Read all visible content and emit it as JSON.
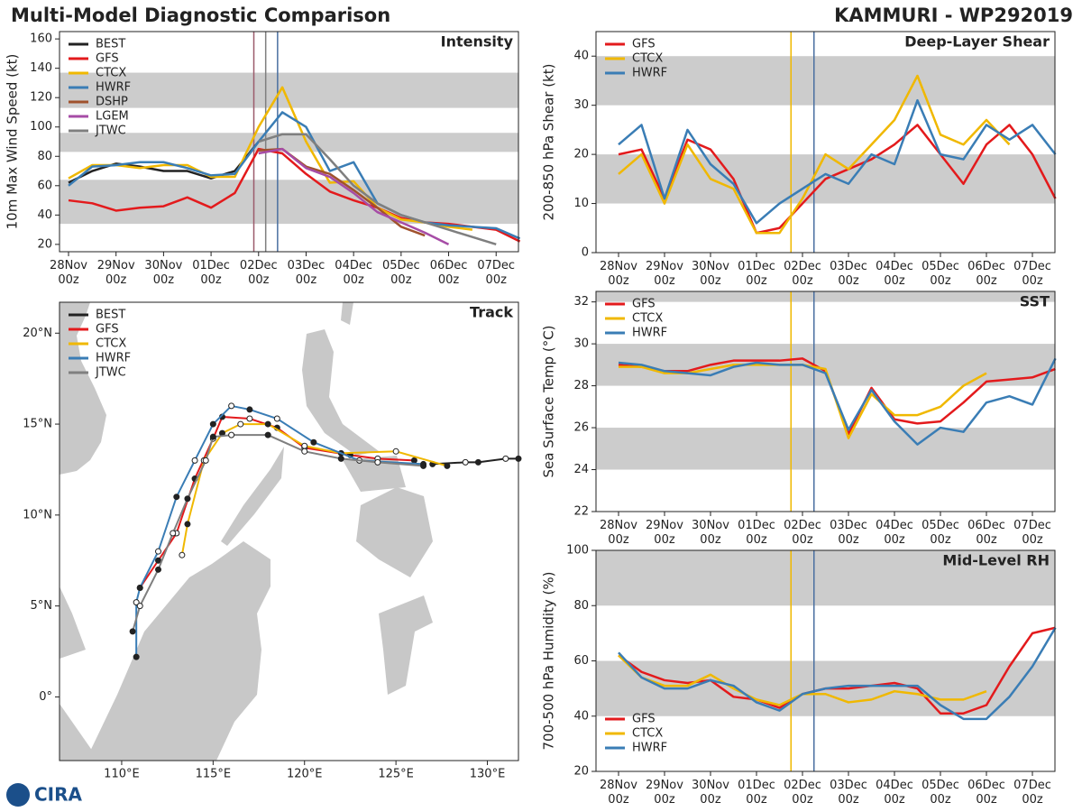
{
  "title": "Multi-Model Diagnostic Comparison",
  "storm": "KAMMURI - WP292019",
  "logo": "CIRA",
  "chart_data": [
    {
      "type": "line",
      "title": "Intensity",
      "ylabel": "10m Max Wind Speed (kt)",
      "legend": "upper left",
      "xlim": [
        -0.19,
        9.47
      ],
      "ylim": [
        15,
        165
      ],
      "xticks": [
        {
          "value": 0,
          "label": "28Nov\n00z"
        },
        {
          "value": 1,
          "label": "29Nov\n00z"
        },
        {
          "value": 2,
          "label": "30Nov\n00z"
        },
        {
          "value": 3,
          "label": "01Dec\n00z"
        },
        {
          "value": 4,
          "label": "02Dec\n00z"
        },
        {
          "value": 5,
          "label": "03Dec\n00z"
        },
        {
          "value": 6,
          "label": "04Dec\n00z"
        },
        {
          "value": 7,
          "label": "05Dec\n00z"
        },
        {
          "value": 8,
          "label": "06Dec\n00z"
        },
        {
          "value": 9,
          "label": "07Dec\n00z"
        }
      ],
      "yticks": [
        20,
        40,
        60,
        80,
        100,
        120,
        140,
        160
      ],
      "bands": [
        [
          34,
          64
        ],
        [
          83,
          96
        ],
        [
          113,
          137
        ]
      ],
      "vlines": [
        {
          "value": 3.9,
          "color": "#9b5b6b"
        },
        {
          "value": 4.15,
          "color": "#7f7f7f"
        },
        {
          "value": 4.4,
          "color": "#4a6fa0"
        }
      ],
      "x": [
        0,
        0.5,
        1,
        1.5,
        2,
        2.5,
        3,
        3.5,
        4,
        4.5,
        5,
        5.5,
        6,
        6.5,
        7,
        7.5,
        8,
        8.5,
        9,
        9.5
      ],
      "series": [
        {
          "name": "BEST",
          "color": "#222222",
          "values": [
            62,
            70,
            75,
            73,
            70,
            70,
            65,
            70,
            90,
            null,
            null,
            null,
            null,
            null,
            null,
            null,
            null,
            null,
            null,
            null
          ]
        },
        {
          "name": "GFS",
          "color": "#e31a1c",
          "values": [
            50,
            48,
            43,
            45,
            46,
            52,
            45,
            55,
            85,
            82,
            68,
            56,
            50,
            45,
            38,
            35,
            34,
            32,
            30,
            22
          ]
        },
        {
          "name": "CTCX",
          "color": "#f0b800",
          "values": [
            65,
            74,
            74,
            72,
            74,
            74,
            66,
            66,
            100,
            127,
            90,
            62,
            63,
            45,
            37,
            35,
            32,
            30,
            null,
            null
          ]
        },
        {
          "name": "HWRF",
          "color": "#3a7db5",
          "values": [
            60,
            73,
            74,
            76,
            76,
            72,
            67,
            68,
            90,
            110,
            100,
            70,
            76,
            48,
            40,
            35,
            33,
            32,
            31,
            24
          ]
        },
        {
          "name": "DSHP",
          "color": "#a0522d",
          "values": [
            null,
            null,
            null,
            null,
            null,
            null,
            null,
            null,
            84,
            85,
            73,
            68,
            57,
            45,
            32,
            26,
            null,
            null,
            null,
            null
          ]
        },
        {
          "name": "LGEM",
          "color": "#a64ca6",
          "values": [
            null,
            null,
            null,
            null,
            null,
            null,
            null,
            null,
            82,
            85,
            72,
            66,
            55,
            42,
            35,
            28,
            20,
            null,
            null,
            null
          ]
        },
        {
          "name": "JTWC",
          "color": "#7f7f7f",
          "values": [
            null,
            null,
            null,
            null,
            null,
            null,
            null,
            null,
            90,
            95,
            95,
            78,
            60,
            48,
            40,
            35,
            30,
            25,
            20,
            null
          ]
        }
      ]
    },
    {
      "type": "track",
      "title": "Track",
      "legend": "upper left",
      "xlim": [
        106.6,
        131.7
      ],
      "ylim": [
        -3.5,
        21.7
      ],
      "xticks": [
        {
          "value": 110,
          "label": "110°E"
        },
        {
          "value": 115,
          "label": "115°E"
        },
        {
          "value": 120,
          "label": "120°E"
        },
        {
          "value": 125,
          "label": "125°E"
        },
        {
          "value": 130,
          "label": "130°E"
        }
      ],
      "yticks": [
        {
          "value": 0,
          "label": "0°"
        },
        {
          "value": 5,
          "label": "5°N"
        },
        {
          "value": 10,
          "label": "10°N"
        },
        {
          "value": 15,
          "label": "15°N"
        },
        {
          "value": 20,
          "label": "20°N"
        }
      ],
      "series": [
        {
          "name": "BEST",
          "color": "#222222",
          "lon": [
            131.7,
            131,
            129.5,
            128.8,
            127
          ],
          "lat": [
            13.1,
            13.1,
            12.9,
            12.9,
            12.8
          ]
        },
        {
          "name": "GFS",
          "color": "#e31a1c",
          "lon": [
            126,
            124,
            122.5,
            120,
            118.5,
            117,
            115.5,
            115,
            114,
            113,
            112,
            111
          ],
          "lat": [
            13.0,
            13.1,
            13.3,
            13.7,
            14.8,
            15.3,
            15.4,
            14.2,
            12,
            9,
            7.5,
            6
          ]
        },
        {
          "name": "CTCX",
          "color": "#f0b800",
          "lon": [
            127.8,
            125,
            122,
            120,
            118,
            116.5,
            115.5,
            114.5,
            113.6,
            113.3
          ],
          "lat": [
            12.7,
            13.5,
            13.4,
            13.8,
            15,
            15,
            14.5,
            13,
            9.5,
            7.8
          ]
        },
        {
          "name": "HWRF",
          "color": "#3a7db5",
          "lon": [
            126.5,
            123,
            120.5,
            118.5,
            117,
            116,
            115,
            114,
            113,
            112,
            111,
            110.8,
            110.8
          ],
          "lat": [
            12.8,
            13,
            14,
            15.3,
            15.8,
            16,
            15,
            13,
            11,
            8,
            6,
            5.2,
            2.2
          ]
        },
        {
          "name": "JTWC",
          "color": "#7f7f7f",
          "lon": [
            126.5,
            124,
            122,
            120,
            118,
            116,
            115,
            114.6,
            113.6,
            112.8,
            112,
            111,
            110.6
          ],
          "lat": [
            12.7,
            12.9,
            13.1,
            13.5,
            14.4,
            14.4,
            14.3,
            13,
            10.9,
            9,
            7,
            5,
            3.6
          ]
        }
      ]
    },
    {
      "type": "line",
      "title": "Deep-Layer Shear",
      "ylabel": "200-850 hPa Shear (kt)",
      "legend": "upper left",
      "xlim": [
        -0.49,
        9.49
      ],
      "ylim": [
        0,
        45
      ],
      "xticks": [
        {
          "value": 0,
          "label": "28Nov\n00z"
        },
        {
          "value": 1,
          "label": "29Nov\n00z"
        },
        {
          "value": 2,
          "label": "30Nov\n00z"
        },
        {
          "value": 3,
          "label": "01Dec\n00z"
        },
        {
          "value": 4,
          "label": "02Dec\n00z"
        },
        {
          "value": 5,
          "label": "03Dec\n00z"
        },
        {
          "value": 6,
          "label": "04Dec\n00z"
        },
        {
          "value": 7,
          "label": "05Dec\n00z"
        },
        {
          "value": 8,
          "label": "06Dec\n00z"
        },
        {
          "value": 9,
          "label": "07Dec\n00z"
        }
      ],
      "yticks": [
        0,
        10,
        20,
        30,
        40
      ],
      "bands": [
        [
          10,
          20
        ],
        [
          30,
          40
        ]
      ],
      "vlines": [
        {
          "value": 3.75,
          "color": "#f0b800"
        },
        {
          "value": 4.25,
          "color": "#4a6fa0"
        }
      ],
      "x": [
        0,
        0.5,
        1,
        1.5,
        2,
        2.5,
        3,
        3.5,
        4,
        4.5,
        5,
        5.5,
        6,
        6.5,
        7,
        7.5,
        8,
        8.5,
        9,
        9.5
      ],
      "series": [
        {
          "name": "GFS",
          "color": "#e31a1c",
          "values": [
            20,
            21,
            11,
            23,
            21,
            15,
            4,
            5,
            10,
            15,
            17,
            19,
            22,
            26,
            20,
            14,
            22,
            26,
            20,
            11
          ]
        },
        {
          "name": "CTCX",
          "color": "#f0b800",
          "values": [
            16,
            20,
            10,
            22,
            15,
            13,
            4,
            4,
            11,
            20,
            17,
            22,
            27,
            36,
            24,
            22,
            27,
            22,
            null,
            null
          ]
        },
        {
          "name": "HWRF",
          "color": "#3a7db5",
          "values": [
            22,
            26,
            11,
            25,
            18,
            14,
            6,
            10,
            13,
            16,
            14,
            20,
            18,
            31,
            20,
            19,
            26,
            23,
            26,
            20
          ]
        }
      ]
    },
    {
      "type": "line",
      "title": "SST",
      "ylabel": "Sea Surface Temp (°C)",
      "legend": "upper left",
      "xlim": [
        -0.49,
        9.49
      ],
      "ylim": [
        22,
        32.5
      ],
      "xticks": [
        {
          "value": 0,
          "label": "28Nov\n00z"
        },
        {
          "value": 1,
          "label": "29Nov\n00z"
        },
        {
          "value": 2,
          "label": "30Nov\n00z"
        },
        {
          "value": 3,
          "label": "01Dec\n00z"
        },
        {
          "value": 4,
          "label": "02Dec\n00z"
        },
        {
          "value": 5,
          "label": "03Dec\n00z"
        },
        {
          "value": 6,
          "label": "04Dec\n00z"
        },
        {
          "value": 7,
          "label": "05Dec\n00z"
        },
        {
          "value": 8,
          "label": "06Dec\n00z"
        },
        {
          "value": 9,
          "label": "07Dec\n00z"
        }
      ],
      "yticks": [
        22,
        24,
        26,
        28,
        30,
        32
      ],
      "bands": [
        [
          24,
          26
        ],
        [
          28,
          30
        ],
        [
          32,
          32.5
        ]
      ],
      "vlines": [
        {
          "value": 3.75,
          "color": "#f0b800"
        },
        {
          "value": 4.25,
          "color": "#4a6fa0"
        }
      ],
      "x": [
        0,
        0.5,
        1,
        1.5,
        2,
        2.5,
        3,
        3.5,
        4,
        4.5,
        5,
        5.5,
        6,
        6.5,
        7,
        7.5,
        8,
        8.5,
        9,
        9.5
      ],
      "series": [
        {
          "name": "GFS",
          "color": "#e31a1c",
          "values": [
            29,
            28.9,
            28.7,
            28.7,
            29,
            29.2,
            29.2,
            29.2,
            29.3,
            28.7,
            25.7,
            27.9,
            26.4,
            26.2,
            26.3,
            27.2,
            28.2,
            28.3,
            28.4,
            28.8
          ]
        },
        {
          "name": "CTCX",
          "color": "#f0b800",
          "values": [
            28.9,
            28.9,
            28.6,
            28.6,
            28.8,
            29,
            29,
            29,
            29,
            28.8,
            25.5,
            27.6,
            26.6,
            26.6,
            27,
            28,
            28.6,
            null,
            null,
            null
          ]
        },
        {
          "name": "HWRF",
          "color": "#3a7db5",
          "values": [
            29.1,
            29,
            28.7,
            28.6,
            28.5,
            28.9,
            29.1,
            29,
            29,
            28.6,
            25.9,
            27.8,
            26.3,
            25.2,
            26,
            25.8,
            27.2,
            27.5,
            27.1,
            29.3
          ]
        }
      ]
    },
    {
      "type": "line",
      "title": "Mid-Level RH",
      "ylabel": "700-500 hPa Humidity (%)",
      "legend": "lower left",
      "xlim": [
        -0.49,
        9.49
      ],
      "ylim": [
        20,
        100
      ],
      "xticks": [
        {
          "value": 0,
          "label": "28Nov\n00z"
        },
        {
          "value": 1,
          "label": "29Nov\n00z"
        },
        {
          "value": 2,
          "label": "30Nov\n00z"
        },
        {
          "value": 3,
          "label": "01Dec\n00z"
        },
        {
          "value": 4,
          "label": "02Dec\n00z"
        },
        {
          "value": 5,
          "label": "03Dec\n00z"
        },
        {
          "value": 6,
          "label": "04Dec\n00z"
        },
        {
          "value": 7,
          "label": "05Dec\n00z"
        },
        {
          "value": 8,
          "label": "06Dec\n00z"
        },
        {
          "value": 9,
          "label": "07Dec\n00z"
        }
      ],
      "yticks": [
        20,
        40,
        60,
        80,
        100
      ],
      "bands": [
        [
          40,
          60
        ],
        [
          80,
          100
        ]
      ],
      "vlines": [
        {
          "value": 3.75,
          "color": "#f0b800"
        },
        {
          "value": 4.25,
          "color": "#4a6fa0"
        }
      ],
      "x": [
        0,
        0.5,
        1,
        1.5,
        2,
        2.5,
        3,
        3.5,
        4,
        4.5,
        5,
        5.5,
        6,
        6.5,
        7,
        7.5,
        8,
        8.5,
        9,
        9.5
      ],
      "series": [
        {
          "name": "GFS",
          "color": "#e31a1c",
          "values": [
            62,
            56,
            53,
            52,
            53,
            47,
            46,
            43,
            48,
            50,
            50,
            51,
            52,
            50,
            41,
            41,
            44,
            58,
            70,
            72
          ]
        },
        {
          "name": "CTCX",
          "color": "#f0b800",
          "values": [
            62,
            54,
            51,
            51,
            55,
            50,
            46,
            44,
            48,
            48,
            45,
            46,
            49,
            48,
            46,
            46,
            49,
            null,
            null,
            null
          ]
        },
        {
          "name": "HWRF",
          "color": "#3a7db5",
          "values": [
            63,
            54,
            50,
            50,
            53,
            51,
            45,
            42,
            48,
            50,
            51,
            51,
            51,
            51,
            44,
            39,
            39,
            47,
            58,
            72
          ]
        }
      ]
    }
  ]
}
